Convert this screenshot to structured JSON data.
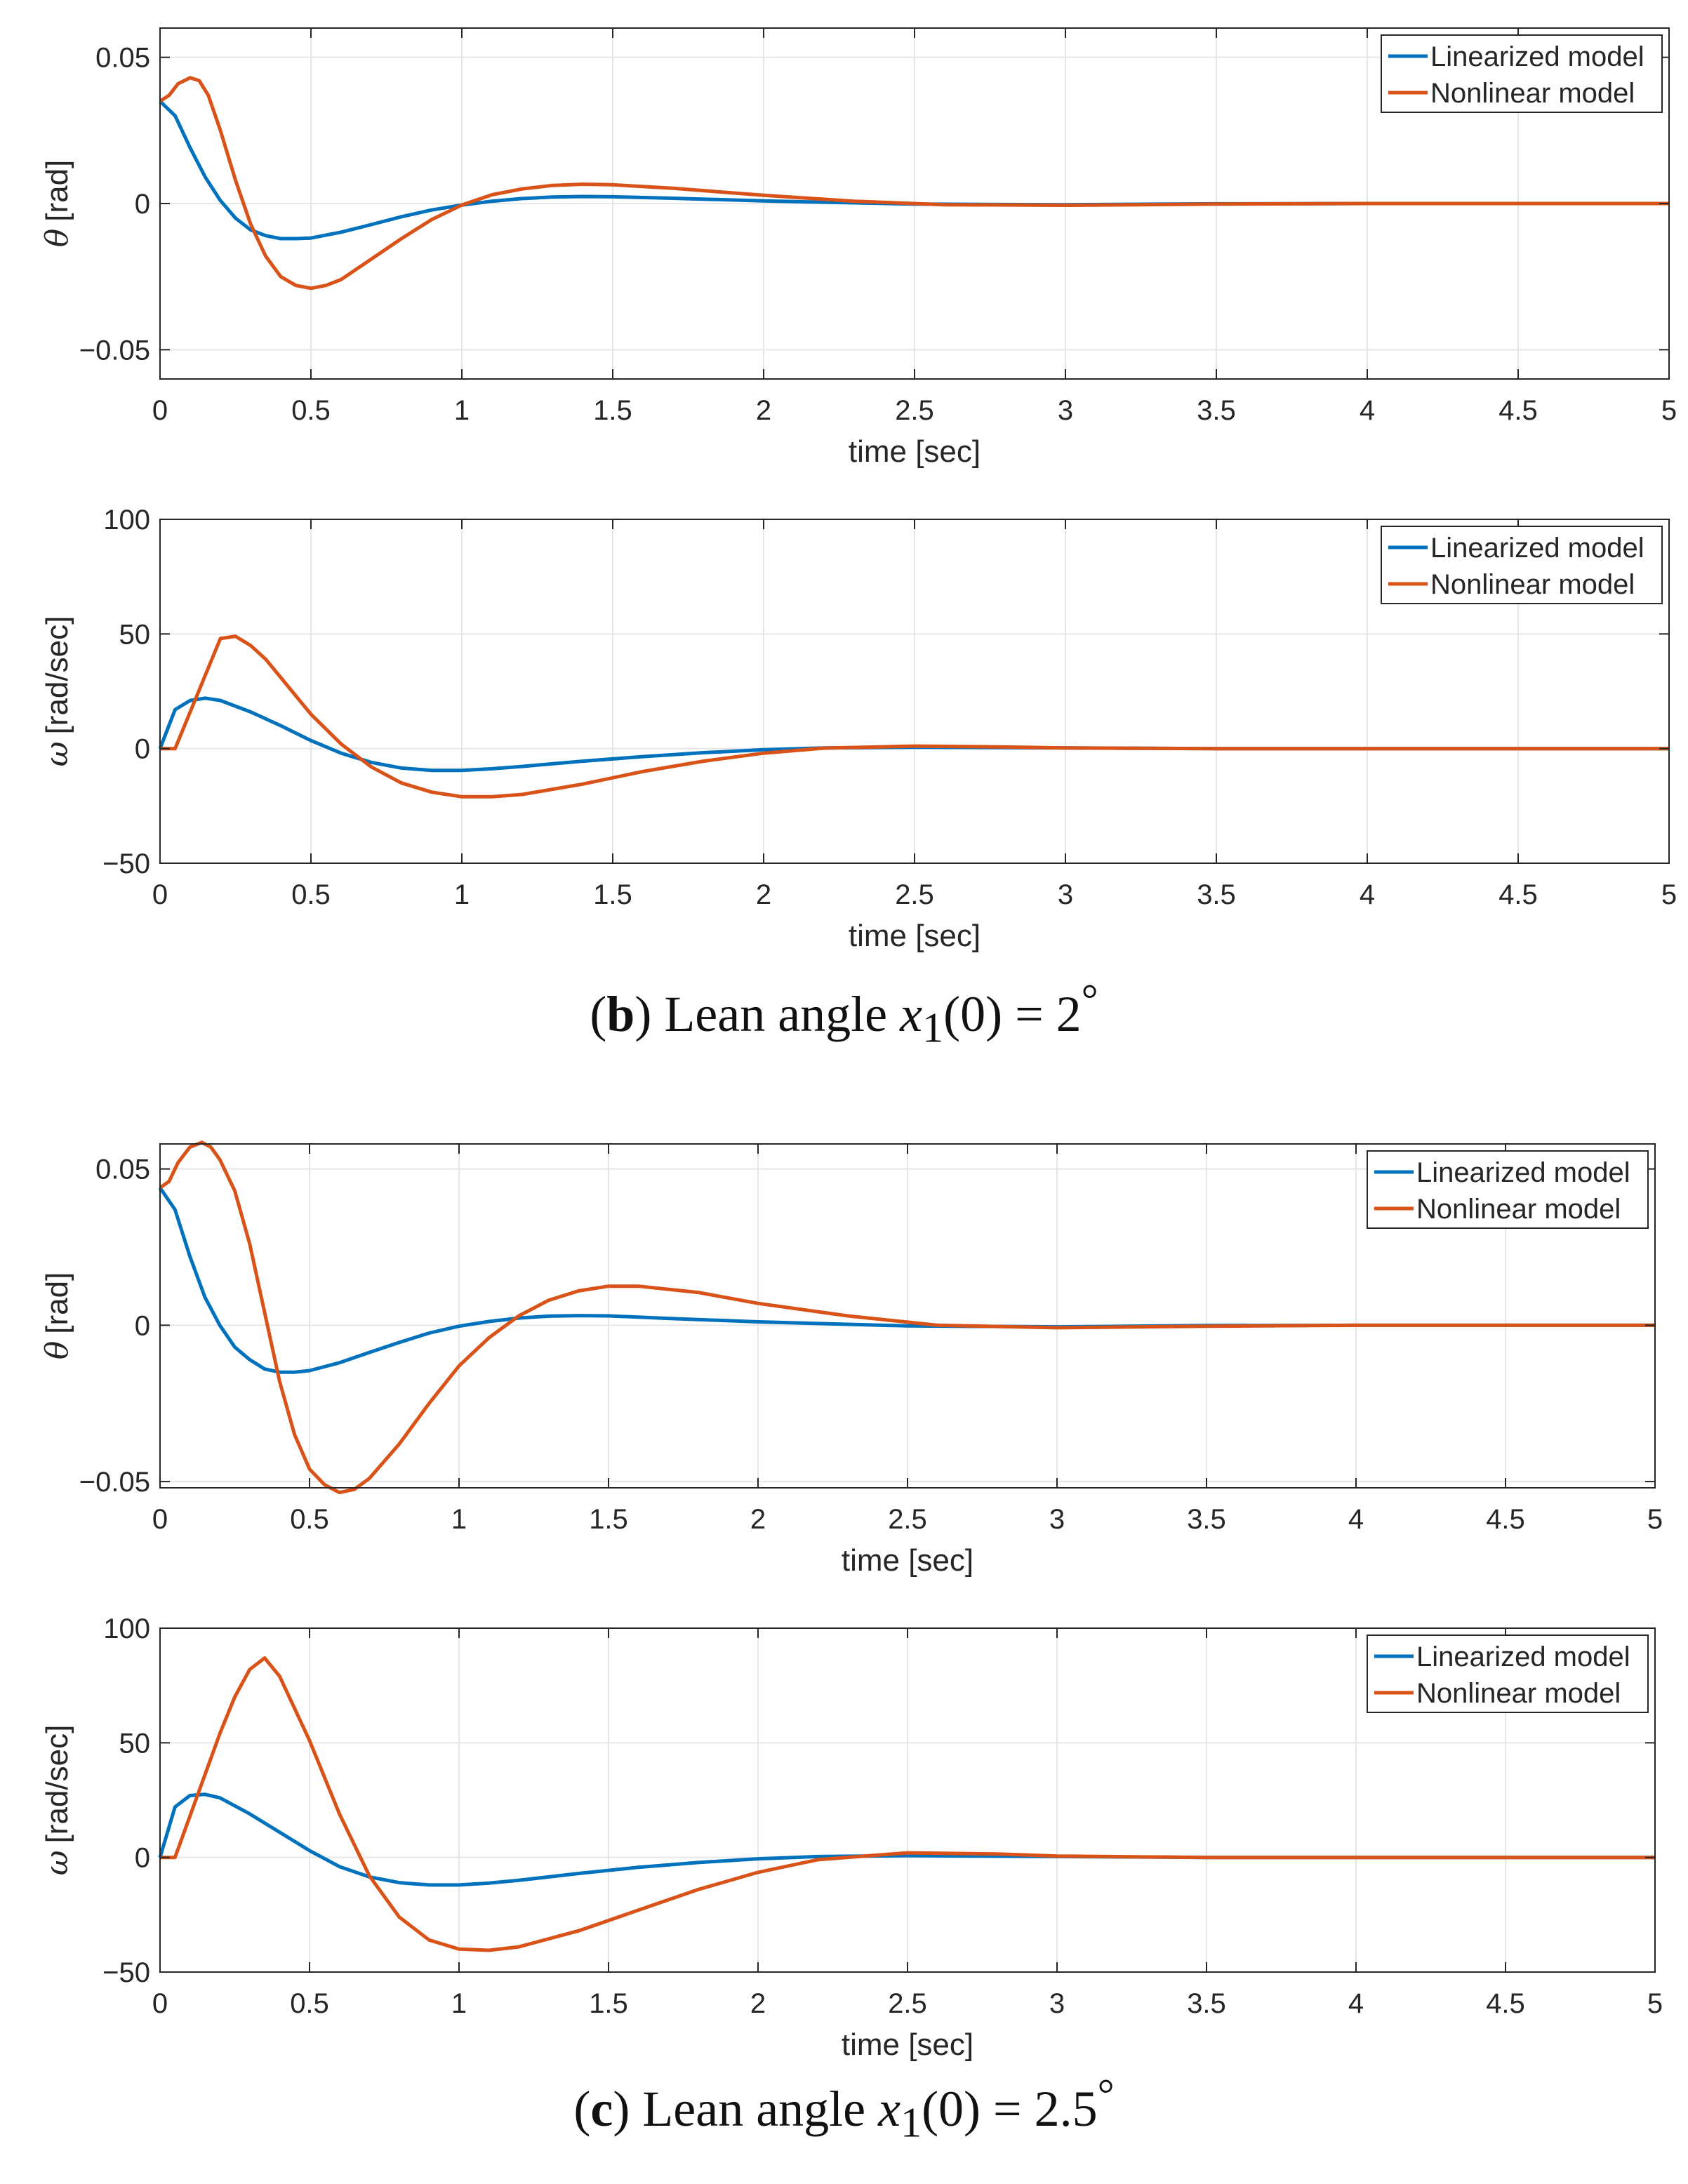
{
  "colors": {
    "linearized": "#0072BD",
    "nonlinear": "#D95319",
    "grid": "#e6e6e6",
    "axis": "#262626"
  },
  "captions": {
    "b": {
      "label": "b",
      "text": "Lean angle",
      "var": "x",
      "sub": "1",
      "arg": "(0) = ",
      "value": "2",
      "deg": "°"
    },
    "c": {
      "label": "c",
      "text": "Lean angle",
      "var": "x",
      "sub": "1",
      "arg": "(0) = ",
      "value": "2.5",
      "deg": "°"
    }
  },
  "chart_data": [
    {
      "id": "b-theta",
      "type": "line",
      "panel": "b",
      "xlabel": "time [sec]",
      "ylabel_symbol": "θ",
      "ylabel_unit": "[rad]",
      "xlim": [
        0,
        5
      ],
      "ylim": [
        -0.06,
        0.06
      ],
      "xticks": [
        0,
        0.5,
        1,
        1.5,
        2,
        2.5,
        3,
        3.5,
        4,
        4.5,
        5
      ],
      "xtick_labels": [
        "0",
        "0.5",
        "1",
        "1.5",
        "2",
        "2.5",
        "3",
        "3.5",
        "4",
        "4.5",
        "5"
      ],
      "yticks": [
        -0.05,
        0,
        0.05
      ],
      "ytick_labels": [
        "−0.05",
        "0",
        "0.05"
      ],
      "legend": "top-right",
      "grid": true,
      "series": [
        {
          "name": "Linearized model",
          "color": "#0072BD",
          "x": [
            0,
            0.05,
            0.1,
            0.15,
            0.2,
            0.25,
            0.3,
            0.35,
            0.4,
            0.45,
            0.5,
            0.6,
            0.7,
            0.8,
            0.9,
            1.0,
            1.1,
            1.2,
            1.3,
            1.4,
            1.5,
            1.7,
            2.0,
            2.5,
            3.0,
            3.5,
            4.0,
            5.0
          ],
          "y": [
            0.035,
            0.03,
            0.019,
            0.009,
            0.001,
            -0.005,
            -0.009,
            -0.011,
            -0.012,
            -0.012,
            -0.0118,
            -0.0098,
            -0.0072,
            -0.0045,
            -0.0022,
            -0.0005,
            0.0008,
            0.0017,
            0.0022,
            0.0024,
            0.0023,
            0.0018,
            0.0009,
            -0.0002,
            -0.0004,
            -0.0001,
            0,
            0
          ]
        },
        {
          "name": "Nonlinear model",
          "color": "#D95319",
          "x": [
            0,
            0.03,
            0.06,
            0.1,
            0.13,
            0.16,
            0.2,
            0.25,
            0.3,
            0.35,
            0.4,
            0.45,
            0.5,
            0.55,
            0.6,
            0.7,
            0.8,
            0.9,
            1.0,
            1.1,
            1.2,
            1.3,
            1.4,
            1.5,
            1.7,
            2.0,
            2.3,
            2.6,
            3.0,
            3.5,
            4.0,
            5.0
          ],
          "y": [
            0.035,
            0.037,
            0.041,
            0.043,
            0.042,
            0.037,
            0.025,
            0.008,
            -0.007,
            -0.018,
            -0.025,
            -0.028,
            -0.029,
            -0.028,
            -0.026,
            -0.019,
            -0.012,
            -0.0055,
            -0.0005,
            0.003,
            0.005,
            0.0062,
            0.0066,
            0.0064,
            0.0052,
            0.0028,
            0.0008,
            -0.0004,
            -0.0006,
            -0.0002,
            0,
            0
          ]
        }
      ]
    },
    {
      "id": "b-omega",
      "type": "line",
      "panel": "b",
      "xlabel": "time [sec]",
      "ylabel_symbol": "ω",
      "ylabel_unit": "[rad/sec]",
      "xlim": [
        0,
        5
      ],
      "ylim": [
        -50,
        100
      ],
      "xticks": [
        0,
        0.5,
        1,
        1.5,
        2,
        2.5,
        3,
        3.5,
        4,
        4.5,
        5
      ],
      "xtick_labels": [
        "0",
        "0.5",
        "1",
        "1.5",
        "2",
        "2.5",
        "3",
        "3.5",
        "4",
        "4.5",
        "5"
      ],
      "yticks": [
        -50,
        0,
        50,
        100
      ],
      "ytick_labels": [
        "−50",
        "0",
        "50",
        "100"
      ],
      "legend": "top-right",
      "grid": true,
      "series": [
        {
          "name": "Linearized model",
          "color": "#0072BD",
          "x": [
            0,
            0.05,
            0.1,
            0.15,
            0.2,
            0.3,
            0.4,
            0.5,
            0.6,
            0.7,
            0.8,
            0.9,
            1.0,
            1.1,
            1.2,
            1.4,
            1.6,
            1.8,
            2.0,
            2.2,
            2.5,
            3.0,
            3.5,
            4.0,
            5.0
          ],
          "y": [
            0,
            17,
            21,
            22,
            21,
            16,
            10,
            3.5,
            -2,
            -6,
            -8.5,
            -9.5,
            -9.5,
            -8.8,
            -7.8,
            -5.5,
            -3.5,
            -1.8,
            -0.5,
            0.3,
            0.6,
            0.3,
            0,
            0,
            0
          ]
        },
        {
          "name": "Nonlinear model",
          "color": "#D95319",
          "x": [
            0,
            0.05,
            0.1,
            0.15,
            0.2,
            0.25,
            0.3,
            0.35,
            0.4,
            0.5,
            0.6,
            0.7,
            0.8,
            0.9,
            1.0,
            1.1,
            1.2,
            1.4,
            1.6,
            1.8,
            2.0,
            2.2,
            2.5,
            2.8,
            3.0,
            3.5,
            4.0,
            5.0
          ],
          "y": [
            0,
            0,
            16,
            32,
            48,
            49,
            45,
            39,
            31,
            15,
            2,
            -8,
            -15,
            -19,
            -21,
            -21,
            -20,
            -15.5,
            -10,
            -5.5,
            -2,
            0.2,
            1.1,
            0.7,
            0.3,
            0,
            0,
            0
          ]
        }
      ]
    },
    {
      "id": "c-theta",
      "type": "line",
      "panel": "c",
      "xlabel": "time [sec]",
      "ylabel_symbol": "θ",
      "ylabel_unit": "[rad]",
      "xlim": [
        0,
        5
      ],
      "ylim": [
        -0.052,
        0.058
      ],
      "xticks": [
        0,
        0.5,
        1,
        1.5,
        2,
        2.5,
        3,
        3.5,
        4,
        4.5,
        5
      ],
      "xtick_labels": [
        "0",
        "0.5",
        "1",
        "1.5",
        "2",
        "2.5",
        "3",
        "3.5",
        "4",
        "4.5",
        "5"
      ],
      "yticks": [
        -0.05,
        0,
        0.05
      ],
      "ytick_labels": [
        "−0.05",
        "0",
        "0.05"
      ],
      "legend": "top-right",
      "grid": true,
      "series": [
        {
          "name": "Linearized model",
          "color": "#0072BD",
          "x": [
            0,
            0.05,
            0.1,
            0.15,
            0.2,
            0.25,
            0.3,
            0.35,
            0.4,
            0.45,
            0.5,
            0.6,
            0.7,
            0.8,
            0.9,
            1.0,
            1.1,
            1.2,
            1.3,
            1.4,
            1.5,
            1.7,
            2.0,
            2.5,
            3.0,
            3.5,
            4.0,
            5.0
          ],
          "y": [
            0.044,
            0.037,
            0.022,
            0.009,
            0.0,
            -0.007,
            -0.011,
            -0.014,
            -0.015,
            -0.015,
            -0.0145,
            -0.012,
            -0.0087,
            -0.0055,
            -0.0025,
            -0.0003,
            0.0012,
            0.0023,
            0.0029,
            0.0031,
            0.003,
            0.0022,
            0.0011,
            -0.0002,
            -0.0005,
            -0.0001,
            0,
            0
          ]
        },
        {
          "name": "Nonlinear model",
          "color": "#D95319",
          "x": [
            0,
            0.03,
            0.06,
            0.1,
            0.14,
            0.17,
            0.2,
            0.25,
            0.3,
            0.35,
            0.4,
            0.45,
            0.5,
            0.55,
            0.6,
            0.65,
            0.7,
            0.8,
            0.9,
            1.0,
            1.1,
            1.2,
            1.3,
            1.4,
            1.5,
            1.6,
            1.8,
            2.0,
            2.3,
            2.6,
            3.0,
            3.5,
            4.0,
            5.0
          ],
          "y": [
            0.044,
            0.046,
            0.052,
            0.057,
            0.0585,
            0.057,
            0.053,
            0.043,
            0.026,
            0.004,
            -0.018,
            -0.035,
            -0.046,
            -0.051,
            -0.0535,
            -0.0525,
            -0.049,
            -0.038,
            -0.025,
            -0.013,
            -0.004,
            0.003,
            0.008,
            0.011,
            0.0125,
            0.0125,
            0.0105,
            0.007,
            0.003,
            0.0,
            -0.0008,
            -0.0003,
            0,
            0
          ]
        }
      ]
    },
    {
      "id": "c-omega",
      "type": "line",
      "panel": "c",
      "xlabel": "time [sec]",
      "ylabel_symbol": "ω",
      "ylabel_unit": "[rad/sec]",
      "xlim": [
        0,
        5
      ],
      "ylim": [
        -50,
        100
      ],
      "xticks": [
        0,
        0.5,
        1,
        1.5,
        2,
        2.5,
        3,
        3.5,
        4,
        4.5,
        5
      ],
      "xtick_labels": [
        "0",
        "0.5",
        "1",
        "1.5",
        "2",
        "2.5",
        "3",
        "3.5",
        "4",
        "4.5",
        "5"
      ],
      "yticks": [
        -50,
        0,
        50,
        100
      ],
      "ytick_labels": [
        "−50",
        "0",
        "50",
        "100"
      ],
      "legend": "top-right",
      "grid": true,
      "series": [
        {
          "name": "Linearized model",
          "color": "#0072BD",
          "x": [
            0,
            0.05,
            0.1,
            0.15,
            0.2,
            0.3,
            0.4,
            0.5,
            0.6,
            0.7,
            0.8,
            0.9,
            1.0,
            1.1,
            1.2,
            1.4,
            1.6,
            1.8,
            2.0,
            2.2,
            2.5,
            3.0,
            3.5,
            4.0,
            5.0
          ],
          "y": [
            0,
            22,
            27,
            27.5,
            26,
            19,
            11,
            3,
            -4,
            -8.5,
            -11,
            -12,
            -12,
            -11.2,
            -10,
            -7,
            -4.3,
            -2.2,
            -0.6,
            0.4,
            0.8,
            0.4,
            0,
            0,
            0
          ]
        },
        {
          "name": "Nonlinear model",
          "color": "#D95319",
          "x": [
            0,
            0.05,
            0.1,
            0.15,
            0.2,
            0.25,
            0.3,
            0.35,
            0.4,
            0.5,
            0.6,
            0.7,
            0.8,
            0.9,
            1.0,
            1.1,
            1.2,
            1.4,
            1.6,
            1.8,
            2.0,
            2.2,
            2.5,
            2.8,
            3.0,
            3.5,
            4.0,
            5.0
          ],
          "y": [
            0,
            0,
            18,
            36,
            54,
            70,
            82,
            87,
            79,
            51,
            19,
            -8,
            -26,
            -36,
            -40,
            -40.5,
            -39,
            -32,
            -23,
            -14,
            -6.5,
            -1,
            2,
            1.5,
            0.6,
            0,
            0,
            0
          ]
        }
      ]
    }
  ]
}
